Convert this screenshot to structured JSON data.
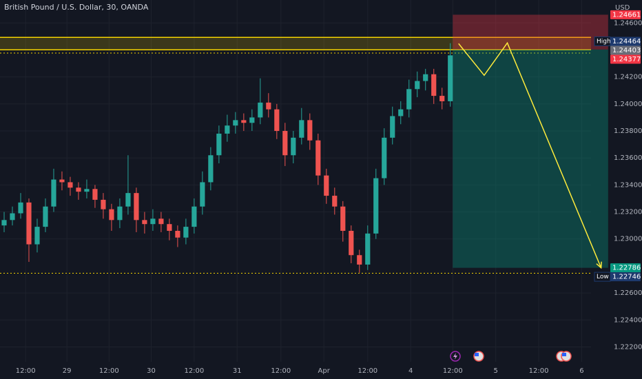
{
  "chart_data": {
    "type": "candlestick",
    "title": "British Pound / U.S. Dollar, 30, OANDA",
    "currency": "USD",
    "up_color": "#26a69a",
    "down_color": "#ef5350",
    "grid": true,
    "xlim": [
      0,
      77.7
    ],
    "ylim": [
      1.2209,
      1.2477
    ],
    "yticks": [
      {
        "value": 1.246,
        "label": "1.24600"
      },
      {
        "value": 1.242,
        "label": "1.24200"
      },
      {
        "value": 1.24,
        "label": "1.24000"
      },
      {
        "value": 1.238,
        "label": "1.23800"
      },
      {
        "value": 1.236,
        "label": "1.23600"
      },
      {
        "value": 1.234,
        "label": "1.23400"
      },
      {
        "value": 1.232,
        "label": "1.23200"
      },
      {
        "value": 1.23,
        "label": "1.23000"
      },
      {
        "value": 1.226,
        "label": "1.22600"
      },
      {
        "value": 1.224,
        "label": "1.22400"
      },
      {
        "value": 1.222,
        "label": "1.22200"
      }
    ],
    "xticks": [
      {
        "value": 3.1,
        "label": "12:00"
      },
      {
        "value": 8.1,
        "label": "29"
      },
      {
        "value": 13.2,
        "label": "12:00"
      },
      {
        "value": 18.3,
        "label": "30"
      },
      {
        "value": 23.5,
        "label": "12:00"
      },
      {
        "value": 28.7,
        "label": "31"
      },
      {
        "value": 34,
        "label": "12:00"
      },
      {
        "value": 39.2,
        "label": "Apr"
      },
      {
        "value": 44.5,
        "label": "12:00"
      },
      {
        "value": 49.7,
        "label": "4"
      },
      {
        "value": 54.8,
        "label": "12:00"
      },
      {
        "value": 60,
        "label": "5"
      },
      {
        "value": 65.2,
        "label": "12:00"
      },
      {
        "value": 70.4,
        "label": "6"
      }
    ],
    "candles": [
      [
        1.231,
        1.232,
        1.2305,
        1.2314
      ],
      [
        1.2314,
        1.2324,
        1.231,
        1.2319
      ],
      [
        1.2319,
        1.2334,
        1.2315,
        1.2327
      ],
      [
        1.2327,
        1.233,
        1.2283,
        1.2296
      ],
      [
        1.2296,
        1.2315,
        1.229,
        1.2309
      ],
      [
        1.2309,
        1.233,
        1.2305,
        1.2324
      ],
      [
        1.2324,
        1.2352,
        1.232,
        1.2344
      ],
      [
        1.2344,
        1.235,
        1.2336,
        1.2342
      ],
      [
        1.2342,
        1.2346,
        1.2332,
        1.2338
      ],
      [
        1.2338,
        1.2342,
        1.2329,
        1.2335
      ],
      [
        1.2335,
        1.2344,
        1.233,
        1.2337
      ],
      [
        1.2337,
        1.234,
        1.2323,
        1.2329
      ],
      [
        1.2329,
        1.2334,
        1.2315,
        1.2322
      ],
      [
        1.2322,
        1.2326,
        1.2306,
        1.2314
      ],
      [
        1.2314,
        1.233,
        1.2308,
        1.2324
      ],
      [
        1.2324,
        1.2362,
        1.2318,
        1.2334
      ],
      [
        1.2334,
        1.2338,
        1.2305,
        1.2314
      ],
      [
        1.2314,
        1.232,
        1.2304,
        1.2311
      ],
      [
        1.2311,
        1.2322,
        1.2306,
        1.2315
      ],
      [
        1.2315,
        1.232,
        1.2305,
        1.2311
      ],
      [
        1.2311,
        1.2315,
        1.2299,
        1.2306
      ],
      [
        1.2306,
        1.231,
        1.2294,
        1.2301
      ],
      [
        1.2301,
        1.2315,
        1.2296,
        1.2309
      ],
      [
        1.2309,
        1.233,
        1.2304,
        1.2324
      ],
      [
        1.2324,
        1.235,
        1.2318,
        1.2342
      ],
      [
        1.2342,
        1.2368,
        1.2336,
        1.2362
      ],
      [
        1.2362,
        1.2384,
        1.2356,
        1.2378
      ],
      [
        1.2378,
        1.2392,
        1.2372,
        1.2384
      ],
      [
        1.2384,
        1.2394,
        1.2378,
        1.2388
      ],
      [
        1.2388,
        1.2393,
        1.238,
        1.2386
      ],
      [
        1.2386,
        1.2396,
        1.238,
        1.239
      ],
      [
        1.239,
        1.2419,
        1.2385,
        1.2401
      ],
      [
        1.2401,
        1.2408,
        1.239,
        1.2396
      ],
      [
        1.2396,
        1.24,
        1.2374,
        1.238
      ],
      [
        1.238,
        1.2386,
        1.2354,
        1.2362
      ],
      [
        1.2362,
        1.238,
        1.2356,
        1.2375
      ],
      [
        1.2375,
        1.2397,
        1.237,
        1.2388
      ],
      [
        1.2388,
        1.2393,
        1.2366,
        1.2373
      ],
      [
        1.2373,
        1.2378,
        1.234,
        1.2347
      ],
      [
        1.2347,
        1.2352,
        1.2326,
        1.2332
      ],
      [
        1.2332,
        1.2338,
        1.2318,
        1.2324
      ],
      [
        1.2324,
        1.2328,
        1.2298,
        1.2306
      ],
      [
        1.2306,
        1.231,
        1.2282,
        1.2288
      ],
      [
        1.2288,
        1.2292,
        1.2275,
        1.2281
      ],
      [
        1.2281,
        1.231,
        1.2277,
        1.2304
      ],
      [
        1.2304,
        1.2352,
        1.23,
        1.2345
      ],
      [
        1.2345,
        1.2382,
        1.234,
        1.2375
      ],
      [
        1.2375,
        1.2398,
        1.237,
        1.2391
      ],
      [
        1.2391,
        1.2402,
        1.2385,
        1.2396
      ],
      [
        1.2396,
        1.2418,
        1.239,
        1.2411
      ],
      [
        1.2411,
        1.2424,
        1.2405,
        1.2417
      ],
      [
        1.2417,
        1.2426,
        1.241,
        1.2422
      ],
      [
        1.2422,
        1.2426,
        1.24,
        1.2406
      ],
      [
        1.2406,
        1.2412,
        1.2396,
        1.2402
      ],
      [
        1.2402,
        1.2445,
        1.2398,
        1.2436
      ]
    ],
    "zone": {
      "values": [
        1.24401,
        1.24493
      ],
      "color": "#f5d300"
    },
    "levels": [
      {
        "value": 1.24377,
        "color": "#f5d300"
      },
      {
        "value": 1.22746,
        "color": "#f5d300"
      }
    ],
    "position": {
      "x": [
        54.8,
        73.6
      ],
      "stop": 1.24661,
      "entry": 1.24403,
      "target": 1.22786
    },
    "projection": {
      "x": [
        55.5,
        58.6,
        61.4,
        72.75
      ],
      "values": [
        1.24447,
        1.24212,
        1.24452,
        1.22786
      ],
      "color": "#ffeb3b"
    },
    "price_labels": [
      {
        "value": 1.24661,
        "label": "1.24661",
        "color": "#f23645"
      },
      {
        "value": 1.24464,
        "label": "1.24464",
        "tag": "High",
        "color": "#1e3a6e"
      },
      {
        "value": 1.24403,
        "label": "1.24403",
        "color": "#6a6d78"
      },
      {
        "value": 1.24377,
        "label": "1.24377",
        "color": "#f23645"
      },
      {
        "value": 1.22786,
        "label": "1.22786",
        "color": "#089981"
      },
      {
        "value": 1.22746,
        "label": "1.22746",
        "tag": "Low",
        "color": "#1e3a6e"
      }
    ]
  }
}
